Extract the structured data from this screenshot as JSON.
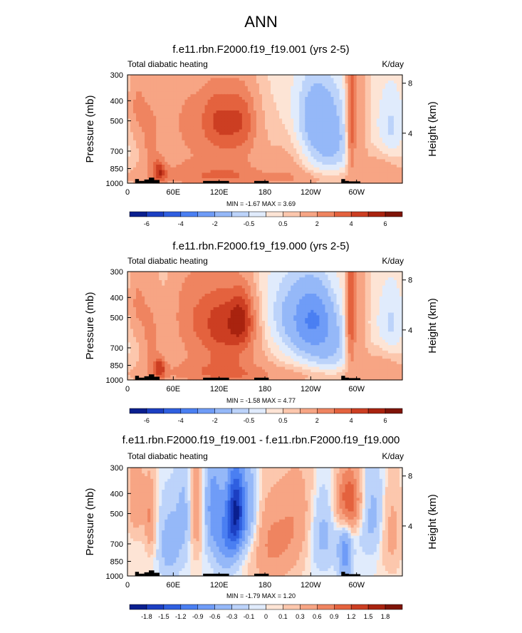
{
  "page": {
    "title": "ANN"
  },
  "panels": [
    {
      "title": "f.e11.rbn.F2000.f19_f19.001 (yrs 2-5)",
      "left_label": "Total diabatic heating",
      "right_label": "K/day",
      "minmax": "MIN = -1.67  MAX =  3.69"
    },
    {
      "title": "f.e11.rbn.F2000.f19_f19.000 (yrs 2-5)",
      "left_label": "Total diabatic heating",
      "right_label": "K/day",
      "minmax": "MIN = -1.58  MAX =  4.77"
    },
    {
      "title": "f.e11.rbn.F2000.f19_f19.001 - f.e11.rbn.F2000.f19_f19.000",
      "left_label": "Total diabatic heating",
      "right_label": "K/day",
      "minmax": "MIN = -1.79  MAX =  1.20"
    }
  ],
  "chart_data": [
    {
      "type": "heatmap",
      "title": "f.e11.rbn.F2000.f19_f19.001 (yrs 2-5)",
      "subtitle": "Total diabatic heating",
      "units": "K/day",
      "ylabel": "Pressure (mb)",
      "ylabel_right": "Height (km)",
      "x_ticks": [
        "0",
        "60E",
        "120E",
        "180",
        "120W",
        "60W"
      ],
      "x_tick_values": [
        0,
        60,
        120,
        180,
        240,
        300
      ],
      "xlim": [
        0,
        360
      ],
      "y_ticks": [
        300,
        400,
        500,
        700,
        850,
        1000
      ],
      "ylim": [
        1000,
        300
      ],
      "y_scale": "log",
      "y_right_ticks": [
        8,
        4
      ],
      "colorbar": {
        "levels": [
          -6,
          -5,
          -4,
          -3,
          -2,
          -1,
          -0.5,
          0,
          0.5,
          1,
          2,
          3,
          4,
          5,
          6
        ],
        "labels": [
          "-6",
          "-4",
          "-2",
          "-0.5",
          "0.5",
          "2",
          "4",
          "6"
        ],
        "colors": [
          "#0a1f8f",
          "#1c3fc2",
          "#2f5fe0",
          "#4a7ff2",
          "#6f9cf7",
          "#95b8f8",
          "#bcd3fa",
          "#e0ebfc",
          "#fde4d5",
          "#fcc7ad",
          "#f7a584",
          "#ef8460",
          "#e4623e",
          "#cc3e22",
          "#a9230f",
          "#7f1408"
        ]
      },
      "min": -1.67,
      "max": 3.69,
      "features": [
        {
          "region": "0-60E",
          "sign": "positive",
          "peak": 2
        },
        {
          "region": "90E-150E mid-troposphere",
          "sign": "positive",
          "peak": 2
        },
        {
          "region": "160W-130W mid-troposphere",
          "sign": "negative",
          "peak": -0.5
        },
        {
          "region": "70W-60W column",
          "sign": "positive",
          "peak": 3
        }
      ]
    },
    {
      "type": "heatmap",
      "title": "f.e11.rbn.F2000.f19_f19.000 (yrs 2-5)",
      "subtitle": "Total diabatic heating",
      "units": "K/day",
      "ylabel": "Pressure (mb)",
      "ylabel_right": "Height (km)",
      "x_ticks": [
        "0",
        "60E",
        "120E",
        "180",
        "120W",
        "60W"
      ],
      "x_tick_values": [
        0,
        60,
        120,
        180,
        240,
        300
      ],
      "xlim": [
        0,
        360
      ],
      "y_ticks": [
        300,
        400,
        500,
        700,
        850,
        1000
      ],
      "ylim": [
        1000,
        300
      ],
      "y_scale": "log",
      "y_right_ticks": [
        8,
        4
      ],
      "colorbar": {
        "levels": [
          -6,
          -5,
          -4,
          -3,
          -2,
          -1,
          -0.5,
          0,
          0.5,
          1,
          2,
          3,
          4,
          5,
          6
        ],
        "labels": [
          "-6",
          "-4",
          "-2",
          "-0.5",
          "0.5",
          "2",
          "4",
          "6"
        ],
        "colors": [
          "#0a1f8f",
          "#1c3fc2",
          "#2f5fe0",
          "#4a7ff2",
          "#6f9cf7",
          "#95b8f8",
          "#bcd3fa",
          "#e0ebfc",
          "#fde4d5",
          "#fcc7ad",
          "#f7a584",
          "#ef8460",
          "#e4623e",
          "#cc3e22",
          "#a9230f",
          "#7f1408"
        ]
      },
      "min": -1.58,
      "max": 4.77,
      "features": [
        {
          "region": "0-60E",
          "sign": "positive",
          "peak": 2
        },
        {
          "region": "100E-160E mid-troposphere",
          "sign": "positive",
          "peak": 4
        },
        {
          "region": "170W-130W mid-troposphere",
          "sign": "negative",
          "peak": -1
        },
        {
          "region": "70W-60W column",
          "sign": "positive",
          "peak": 3
        }
      ]
    },
    {
      "type": "heatmap",
      "title": "f.e11.rbn.F2000.f19_f19.001 - f.e11.rbn.F2000.f19_f19.000",
      "subtitle": "Total diabatic heating",
      "units": "K/day",
      "ylabel": "Pressure (mb)",
      "ylabel_right": "Height (km)",
      "x_ticks": [
        "0",
        "60E",
        "120E",
        "180",
        "120W",
        "60W"
      ],
      "x_tick_values": [
        0,
        60,
        120,
        180,
        240,
        300
      ],
      "xlim": [
        0,
        360
      ],
      "y_ticks": [
        300,
        400,
        500,
        700,
        850,
        1000
      ],
      "ylim": [
        1000,
        300
      ],
      "y_scale": "log",
      "y_right_ticks": [
        8,
        4
      ],
      "colorbar": {
        "levels": [
          -1.8,
          -1.5,
          -1.2,
          -0.9,
          -0.6,
          -0.3,
          -0.1,
          0,
          0.1,
          0.3,
          0.6,
          0.9,
          1.2,
          1.5,
          1.8
        ],
        "labels": [
          "-1.8",
          "-1.5",
          "-1.2",
          "-0.9",
          "-0.6",
          "-0.3",
          "-0.1",
          "0",
          "0.1",
          "0.3",
          "0.6",
          "0.9",
          "1.2",
          "1.5",
          "1.8"
        ],
        "colors": [
          "#0a1f8f",
          "#1c3fc2",
          "#2f5fe0",
          "#4a7ff2",
          "#6f9cf7",
          "#95b8f8",
          "#bcd3fa",
          "#e0ebfc",
          "#fde4d5",
          "#fcc7ad",
          "#f7a584",
          "#ef8460",
          "#e4623e",
          "#cc3e22",
          "#a9230f",
          "#7f1408"
        ]
      },
      "min": -1.79,
      "max": 1.2,
      "features": [
        {
          "region": "120E-150E mid-troposphere",
          "sign": "negative",
          "peak": -1.5
        },
        {
          "region": "60W-80W upper troposphere",
          "sign": "positive",
          "peak": 0.9
        },
        {
          "region": "0-60E",
          "sign": "mixed",
          "peak": 0.6
        },
        {
          "region": "180-150W",
          "sign": "positive",
          "peak": 0.3
        }
      ]
    }
  ]
}
